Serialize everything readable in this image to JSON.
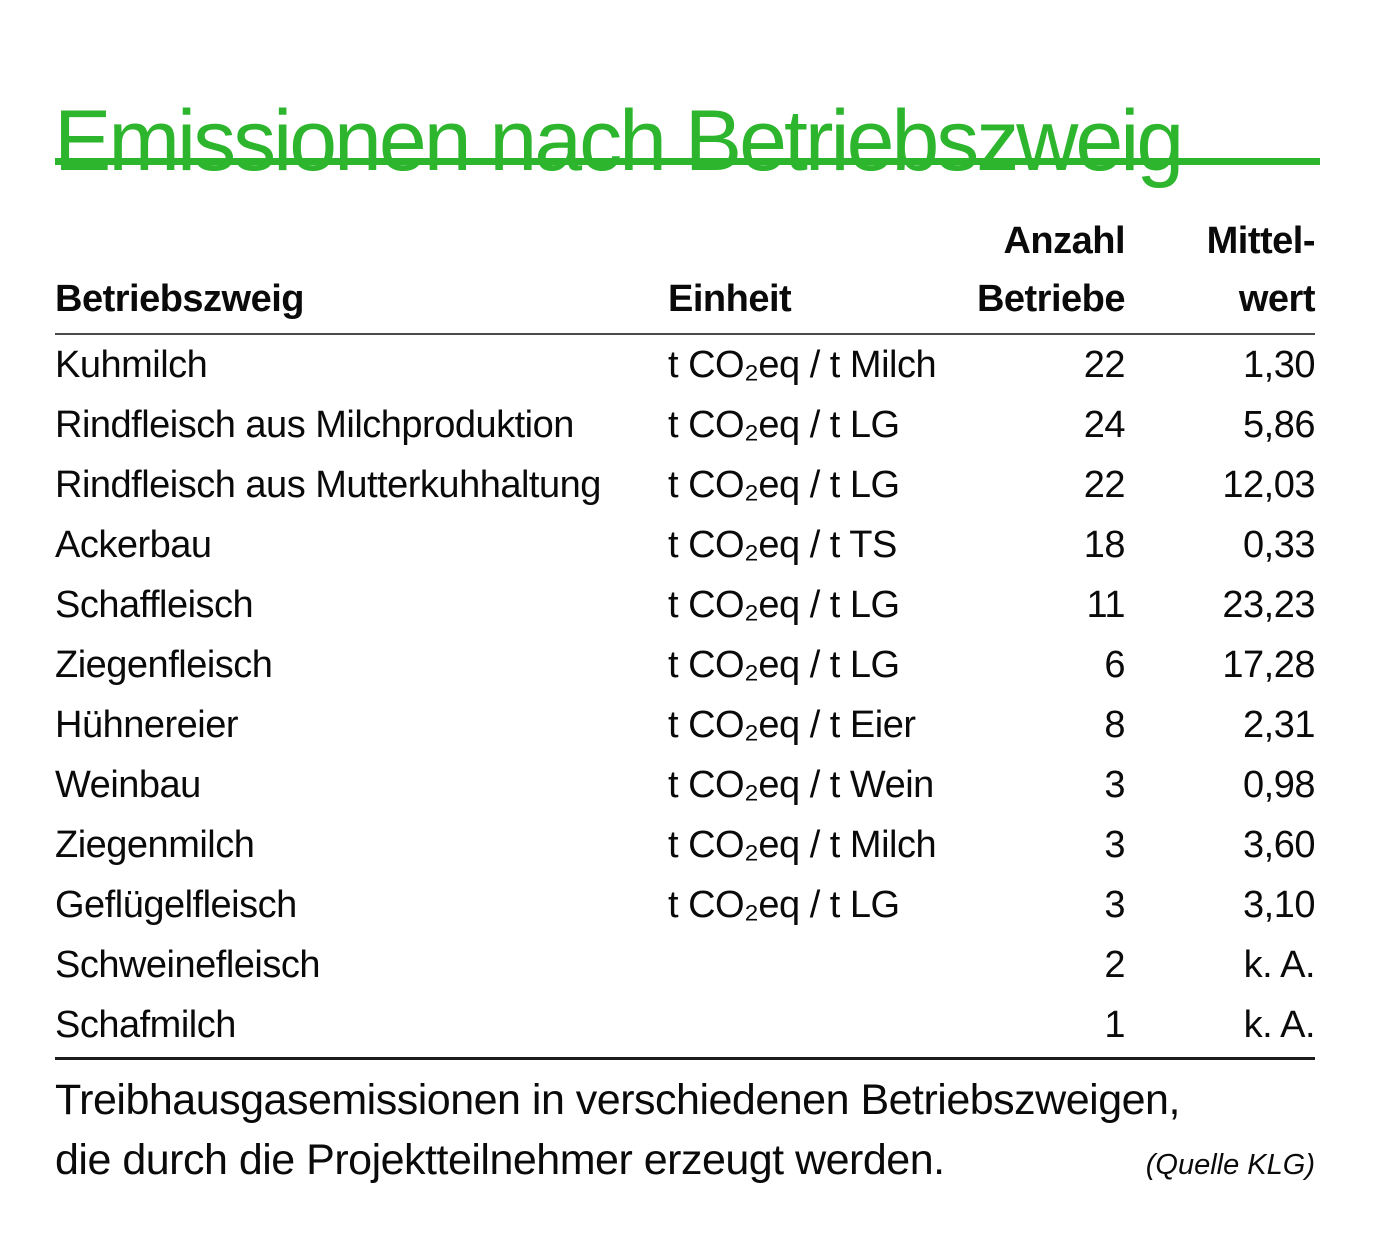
{
  "title": "Emissionen nach Betriebszweig",
  "colors": {
    "accent_green": "#2db52d",
    "text": "#0a0a0a",
    "header_rule": "#4a4a4a",
    "bottom_rule": "#1c1c1c"
  },
  "chart_data": {
    "type": "table",
    "title": "Emissionen nach Betriebszweig",
    "columns": [
      "Betriebszweig",
      "Einheit",
      "Anzahl Betriebe",
      "Mittelwert"
    ],
    "header": {
      "col1": "Betriebszweig",
      "col2": "Einheit",
      "col3_line1": "Anzahl",
      "col3_line2": "Betriebe",
      "col4_line1": "Mittel-",
      "col4_line2": "wert"
    },
    "rows": [
      {
        "betriebszweig": "Kuhmilch",
        "einheit": "t CO₂eq / t Milch",
        "anzahl_betriebe": "22",
        "mittelwert": "1,30"
      },
      {
        "betriebszweig": "Rindfleisch aus Milchproduktion",
        "einheit": "t CO₂eq / t LG",
        "anzahl_betriebe": "24",
        "mittelwert": "5,86"
      },
      {
        "betriebszweig": "Rindfleisch aus Mutterkuhhaltung",
        "einheit": "t CO₂eq / t LG",
        "anzahl_betriebe": "22",
        "mittelwert": "12,03"
      },
      {
        "betriebszweig": "Ackerbau",
        "einheit": "t CO₂eq / t TS",
        "anzahl_betriebe": "18",
        "mittelwert": "0,33"
      },
      {
        "betriebszweig": "Schaffleisch",
        "einheit": "t CO₂eq / t LG",
        "anzahl_betriebe": "11",
        "mittelwert": "23,23"
      },
      {
        "betriebszweig": "Ziegenfleisch",
        "einheit": "t CO₂eq / t LG",
        "anzahl_betriebe": "6",
        "mittelwert": "17,28"
      },
      {
        "betriebszweig": "Hühnereier",
        "einheit": "t CO₂eq / t Eier",
        "anzahl_betriebe": "8",
        "mittelwert": "2,31"
      },
      {
        "betriebszweig": "Weinbau",
        "einheit": "t CO₂eq / t Wein",
        "anzahl_betriebe": "3",
        "mittelwert": "0,98"
      },
      {
        "betriebszweig": "Ziegenmilch",
        "einheit": "t CO₂eq / t Milch",
        "anzahl_betriebe": "3",
        "mittelwert": "3,60"
      },
      {
        "betriebszweig": "Geflügelfleisch",
        "einheit": "t CO₂eq / t LG",
        "anzahl_betriebe": "3",
        "mittelwert": "3,10"
      },
      {
        "betriebszweig": "Schweinefleisch",
        "einheit": "",
        "anzahl_betriebe": "2",
        "mittelwert": "k. A."
      },
      {
        "betriebszweig": "Schafmilch",
        "einheit": "",
        "anzahl_betriebe": "1",
        "mittelwert": "k. A."
      }
    ]
  },
  "caption": {
    "line1": "Treibhausgasemissionen in verschiedenen Betriebszweigen,",
    "line2": "die durch die Projektteilnehmer erzeugt werden.",
    "source": "(Quelle KLG)"
  }
}
